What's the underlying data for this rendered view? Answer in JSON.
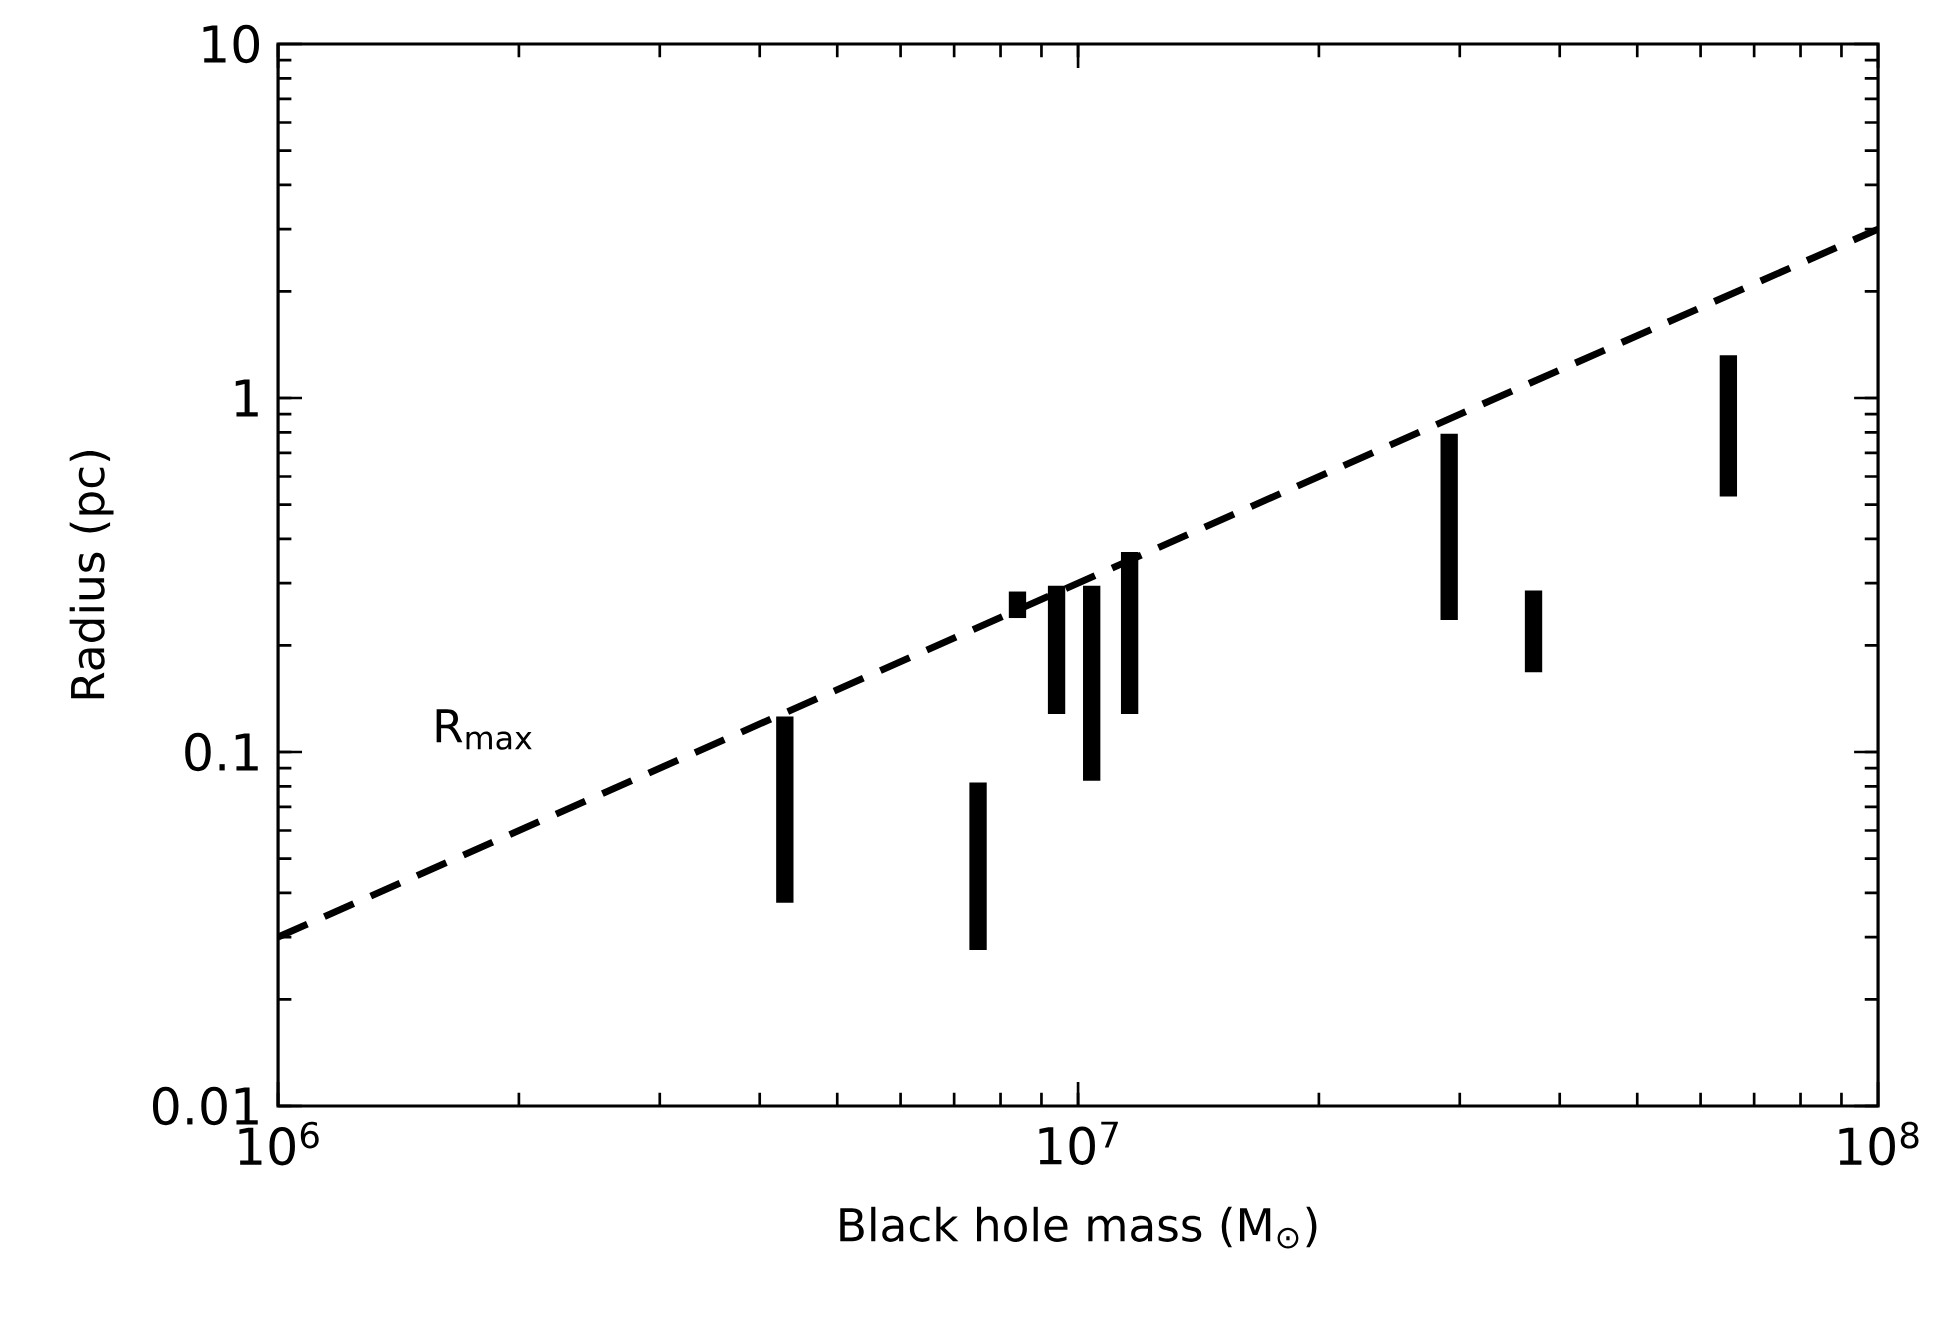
{
  "chart_data": {
    "type": "bar",
    "xlabel": "Black hole mass (M$_{⊙}$)",
    "ylabel": "Radius (pc)",
    "log": "xy",
    "x": [
      4300000,
      7500000,
      8400000,
      9400000,
      10400000,
      11600000,
      29100000,
      37100000,
      65000000
    ],
    "base": [
      0.0375,
      0.0276,
      0.239,
      0.128,
      0.083,
      0.128,
      0.236,
      0.168,
      0.527
    ],
    "values": [
      0.0885,
      0.0544,
      0.045,
      0.167,
      0.212,
      0.239,
      0.557,
      0.118,
      0.793
    ],
    "color": "#000000",
    "series": [
      {
        "type": "line",
        "name": "R$_{max}$",
        "color": "#000000",
        "line_style": "dashed",
        "x": [
          1000000,
          100000000
        ],
        "values": [
          0.03,
          3
        ]
      }
    ],
    "xlim": [
      1000000,
      100000000
    ],
    "ylim": [
      0.01,
      10
    ],
    "xticks": [
      {
        "value": 1000000,
        "label": "10$^{6}$"
      },
      {
        "value": 10000000,
        "label": "10$^{7}$"
      },
      {
        "value": 100000000,
        "label": "10$^{8}$"
      }
    ],
    "yticks": [
      0.01,
      0.1,
      1,
      10
    ],
    "grid": false,
    "legend": false
  }
}
